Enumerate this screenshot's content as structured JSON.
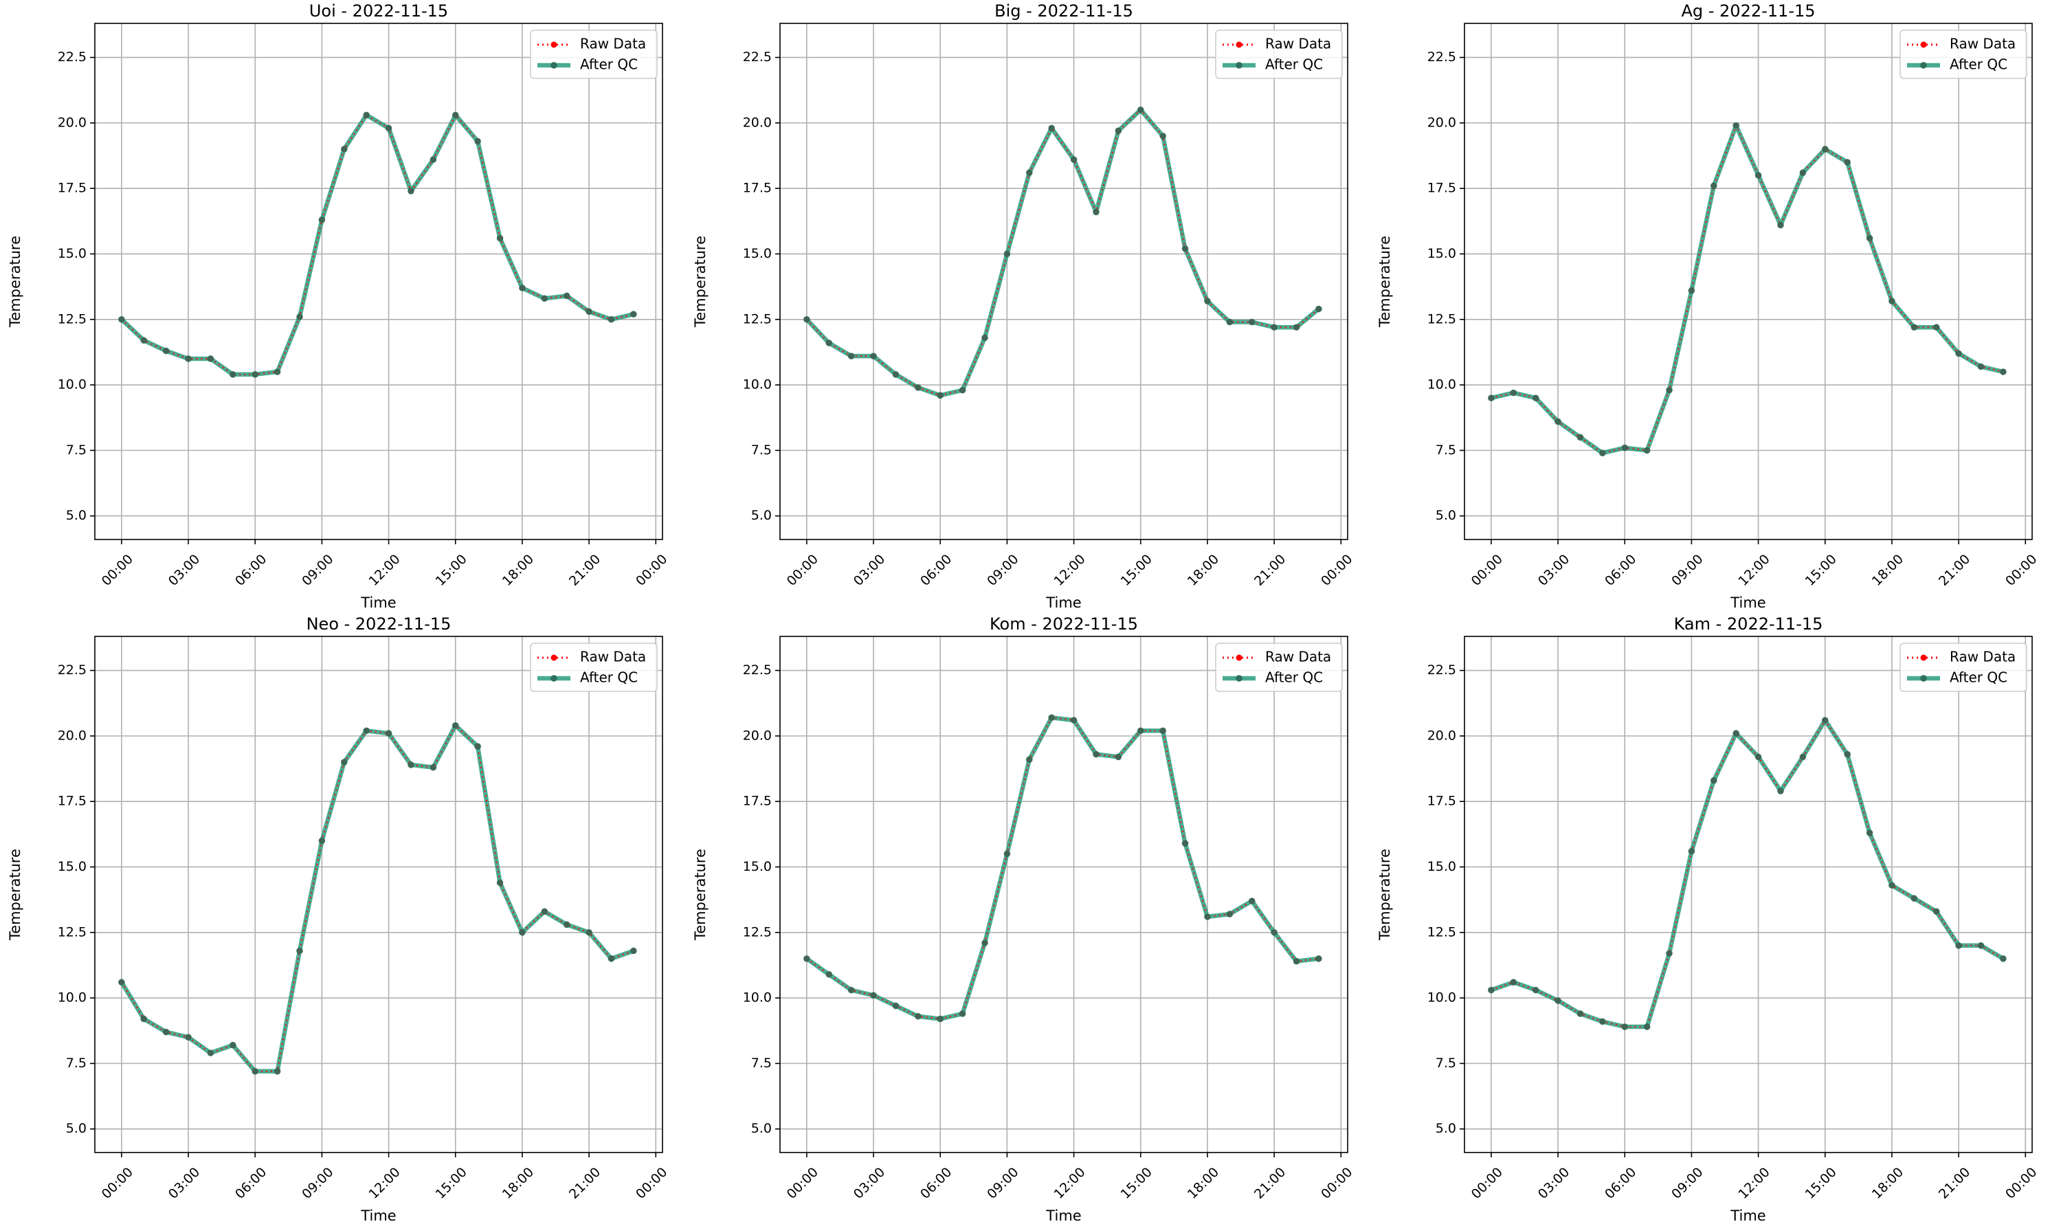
{
  "figure": {
    "xlabel": "Time",
    "ylabel": "Temperature",
    "legend": [
      "Raw Data",
      "After QC"
    ],
    "legend_position": "top-right",
    "colors": {
      "raw": "#ff0000",
      "qc": "#2a9d7f",
      "qc_marker": "#2f6f5c",
      "grid": "#b0b0b0"
    }
  },
  "chart_data": [
    {
      "type": "line",
      "title": "Uoi - 2022-11-15",
      "xlabel": "Time",
      "ylabel": "Temperature",
      "xlim": [
        -1.2,
        24.3
      ],
      "ylim": [
        4.1,
        23.8
      ],
      "grid": true,
      "xticks": [
        0,
        3,
        6,
        9,
        12,
        15,
        18,
        21,
        24
      ],
      "xtick_labels": [
        "00:00",
        "03:00",
        "06:00",
        "09:00",
        "12:00",
        "15:00",
        "18:00",
        "21:00",
        "00:00"
      ],
      "yticks": [
        5,
        7.5,
        10,
        12.5,
        15,
        17.5,
        20,
        22.5
      ],
      "ytick_labels": [
        "5.0",
        "7.5",
        "10.0",
        "12.5",
        "15.0",
        "17.5",
        "20.0",
        "22.5"
      ],
      "x": [
        0,
        1,
        2,
        3,
        4,
        5,
        6,
        7,
        8,
        9,
        10,
        11,
        12,
        13,
        14,
        15,
        16,
        17,
        18,
        19,
        20,
        21,
        22,
        23
      ],
      "series": [
        {
          "name": "Raw Data",
          "values": [
            12.5,
            11.7,
            11.3,
            11.0,
            11.0,
            10.4,
            10.4,
            10.5,
            12.6,
            16.3,
            19.0,
            20.3,
            19.8,
            17.4,
            18.6,
            20.3,
            19.3,
            15.6,
            13.7,
            13.3,
            13.4,
            12.8,
            12.5,
            12.7
          ]
        },
        {
          "name": "After QC",
          "values": [
            12.5,
            11.7,
            11.3,
            11.0,
            11.0,
            10.4,
            10.4,
            10.5,
            12.6,
            16.3,
            19.0,
            20.3,
            19.8,
            17.4,
            18.6,
            20.3,
            19.3,
            15.6,
            13.7,
            13.3,
            13.4,
            12.8,
            12.5,
            12.7
          ]
        }
      ]
    },
    {
      "type": "line",
      "title": "Big - 2022-11-15",
      "xlabel": "Time",
      "ylabel": "Temperature",
      "xlim": [
        -1.2,
        24.3
      ],
      "ylim": [
        4.1,
        23.8
      ],
      "grid": true,
      "xticks": [
        0,
        3,
        6,
        9,
        12,
        15,
        18,
        21,
        24
      ],
      "xtick_labels": [
        "00:00",
        "03:00",
        "06:00",
        "09:00",
        "12:00",
        "15:00",
        "18:00",
        "21:00",
        "00:00"
      ],
      "yticks": [
        5,
        7.5,
        10,
        12.5,
        15,
        17.5,
        20,
        22.5
      ],
      "ytick_labels": [
        "5.0",
        "7.5",
        "10.0",
        "12.5",
        "15.0",
        "17.5",
        "20.0",
        "22.5"
      ],
      "x": [
        0,
        1,
        2,
        3,
        4,
        5,
        6,
        7,
        8,
        9,
        10,
        11,
        12,
        13,
        14,
        15,
        16,
        17,
        18,
        19,
        20,
        21,
        22,
        23
      ],
      "series": [
        {
          "name": "Raw Data",
          "values": [
            12.5,
            11.6,
            11.1,
            11.1,
            10.4,
            9.9,
            9.6,
            9.8,
            11.8,
            15.0,
            18.1,
            19.8,
            18.6,
            16.6,
            19.7,
            20.5,
            19.5,
            15.2,
            13.2,
            12.4,
            12.4,
            12.2,
            12.2,
            12.9
          ]
        },
        {
          "name": "After QC",
          "values": [
            12.5,
            11.6,
            11.1,
            11.1,
            10.4,
            9.9,
            9.6,
            9.8,
            11.8,
            15.0,
            18.1,
            19.8,
            18.6,
            16.6,
            19.7,
            20.5,
            19.5,
            15.2,
            13.2,
            12.4,
            12.4,
            12.2,
            12.2,
            12.9
          ]
        }
      ]
    },
    {
      "type": "line",
      "title": "Ag - 2022-11-15",
      "xlabel": "Time",
      "ylabel": "Temperature",
      "xlim": [
        -1.2,
        24.3
      ],
      "ylim": [
        4.1,
        23.8
      ],
      "grid": true,
      "xticks": [
        0,
        3,
        6,
        9,
        12,
        15,
        18,
        21,
        24
      ],
      "xtick_labels": [
        "00:00",
        "03:00",
        "06:00",
        "09:00",
        "12:00",
        "15:00",
        "18:00",
        "21:00",
        "00:00"
      ],
      "yticks": [
        5,
        7.5,
        10,
        12.5,
        15,
        17.5,
        20,
        22.5
      ],
      "ytick_labels": [
        "5.0",
        "7.5",
        "10.0",
        "12.5",
        "15.0",
        "17.5",
        "20.0",
        "22.5"
      ],
      "x": [
        0,
        1,
        2,
        3,
        4,
        5,
        6,
        7,
        8,
        9,
        10,
        11,
        12,
        13,
        14,
        15,
        16,
        17,
        18,
        19,
        20,
        21,
        22,
        23
      ],
      "series": [
        {
          "name": "Raw Data",
          "values": [
            9.5,
            9.7,
            9.5,
            8.6,
            8.0,
            7.4,
            7.6,
            7.5,
            9.8,
            13.6,
            17.6,
            19.9,
            18.0,
            16.1,
            18.1,
            19.0,
            18.5,
            15.6,
            13.2,
            12.2,
            12.2,
            11.2,
            10.7,
            10.5
          ]
        },
        {
          "name": "After QC",
          "values": [
            9.5,
            9.7,
            9.5,
            8.6,
            8.0,
            7.4,
            7.6,
            7.5,
            9.8,
            13.6,
            17.6,
            19.9,
            18.0,
            16.1,
            18.1,
            19.0,
            18.5,
            15.6,
            13.2,
            12.2,
            12.2,
            11.2,
            10.7,
            10.5
          ]
        }
      ]
    },
    {
      "type": "line",
      "title": "Neo - 2022-11-15",
      "xlabel": "Time",
      "ylabel": "Temperature",
      "xlim": [
        -1.2,
        24.3
      ],
      "ylim": [
        4.1,
        23.8
      ],
      "grid": true,
      "xticks": [
        0,
        3,
        6,
        9,
        12,
        15,
        18,
        21,
        24
      ],
      "xtick_labels": [
        "00:00",
        "03:00",
        "06:00",
        "09:00",
        "12:00",
        "15:00",
        "18:00",
        "21:00",
        "00:00"
      ],
      "yticks": [
        5,
        7.5,
        10,
        12.5,
        15,
        17.5,
        20,
        22.5
      ],
      "ytick_labels": [
        "5.0",
        "7.5",
        "10.0",
        "12.5",
        "15.0",
        "17.5",
        "20.0",
        "22.5"
      ],
      "x": [
        0,
        1,
        2,
        3,
        4,
        5,
        6,
        7,
        8,
        9,
        10,
        11,
        12,
        13,
        14,
        15,
        16,
        17,
        18,
        19,
        20,
        21,
        22,
        23
      ],
      "series": [
        {
          "name": "Raw Data",
          "values": [
            10.6,
            9.2,
            8.7,
            8.5,
            7.9,
            8.2,
            7.2,
            7.2,
            11.8,
            16.0,
            19.0,
            20.2,
            20.1,
            18.9,
            18.8,
            20.4,
            19.6,
            14.4,
            12.5,
            13.3,
            12.8,
            12.5,
            11.5,
            11.8
          ]
        },
        {
          "name": "After QC",
          "values": [
            10.6,
            9.2,
            8.7,
            8.5,
            7.9,
            8.2,
            7.2,
            7.2,
            11.8,
            16.0,
            19.0,
            20.2,
            20.1,
            18.9,
            18.8,
            20.4,
            19.6,
            14.4,
            12.5,
            13.3,
            12.8,
            12.5,
            11.5,
            11.8
          ]
        }
      ]
    },
    {
      "type": "line",
      "title": "Kom - 2022-11-15",
      "xlabel": "Time",
      "ylabel": "Temperature",
      "xlim": [
        -1.2,
        24.3
      ],
      "ylim": [
        4.1,
        23.8
      ],
      "grid": true,
      "xticks": [
        0,
        3,
        6,
        9,
        12,
        15,
        18,
        21,
        24
      ],
      "xtick_labels": [
        "00:00",
        "03:00",
        "06:00",
        "09:00",
        "12:00",
        "15:00",
        "18:00",
        "21:00",
        "00:00"
      ],
      "yticks": [
        5,
        7.5,
        10,
        12.5,
        15,
        17.5,
        20,
        22.5
      ],
      "ytick_labels": [
        "5.0",
        "7.5",
        "10.0",
        "12.5",
        "15.0",
        "17.5",
        "20.0",
        "22.5"
      ],
      "x": [
        0,
        1,
        2,
        3,
        4,
        5,
        6,
        7,
        8,
        9,
        10,
        11,
        12,
        13,
        14,
        15,
        16,
        17,
        18,
        19,
        20,
        21,
        22,
        23
      ],
      "series": [
        {
          "name": "Raw Data",
          "values": [
            11.5,
            10.9,
            10.3,
            10.1,
            9.7,
            9.3,
            9.2,
            9.4,
            12.1,
            15.5,
            19.1,
            20.7,
            20.6,
            19.3,
            19.2,
            20.2,
            20.2,
            15.9,
            13.1,
            13.2,
            13.7,
            12.5,
            11.4,
            11.5
          ]
        },
        {
          "name": "After QC",
          "values": [
            11.5,
            10.9,
            10.3,
            10.1,
            9.7,
            9.3,
            9.2,
            9.4,
            12.1,
            15.5,
            19.1,
            20.7,
            20.6,
            19.3,
            19.2,
            20.2,
            20.2,
            15.9,
            13.1,
            13.2,
            13.7,
            12.5,
            11.4,
            11.5
          ]
        }
      ]
    },
    {
      "type": "line",
      "title": "Kam - 2022-11-15",
      "xlabel": "Time",
      "ylabel": "Temperature",
      "xlim": [
        -1.2,
        24.3
      ],
      "ylim": [
        4.1,
        23.8
      ],
      "grid": true,
      "xticks": [
        0,
        3,
        6,
        9,
        12,
        15,
        18,
        21,
        24
      ],
      "xtick_labels": [
        "00:00",
        "03:00",
        "06:00",
        "09:00",
        "12:00",
        "15:00",
        "18:00",
        "21:00",
        "00:00"
      ],
      "yticks": [
        5,
        7.5,
        10,
        12.5,
        15,
        17.5,
        20,
        22.5
      ],
      "ytick_labels": [
        "5.0",
        "7.5",
        "10.0",
        "12.5",
        "15.0",
        "17.5",
        "20.0",
        "22.5"
      ],
      "x": [
        0,
        1,
        2,
        3,
        4,
        5,
        6,
        7,
        8,
        9,
        10,
        11,
        12,
        13,
        14,
        15,
        16,
        17,
        18,
        19,
        20,
        21,
        22,
        23
      ],
      "series": [
        {
          "name": "Raw Data",
          "values": [
            10.3,
            10.6,
            10.3,
            9.9,
            9.4,
            9.1,
            8.9,
            8.9,
            11.7,
            15.6,
            18.3,
            20.1,
            19.2,
            17.9,
            19.2,
            20.6,
            19.3,
            16.3,
            14.3,
            13.8,
            13.3,
            12.0,
            12.0,
            11.5
          ]
        },
        {
          "name": "After QC",
          "values": [
            10.3,
            10.6,
            10.3,
            9.9,
            9.4,
            9.1,
            8.9,
            8.9,
            11.7,
            15.6,
            18.3,
            20.1,
            19.2,
            17.9,
            19.2,
            20.6,
            19.3,
            16.3,
            14.3,
            13.8,
            13.3,
            12.0,
            12.0,
            11.5
          ]
        }
      ]
    }
  ]
}
